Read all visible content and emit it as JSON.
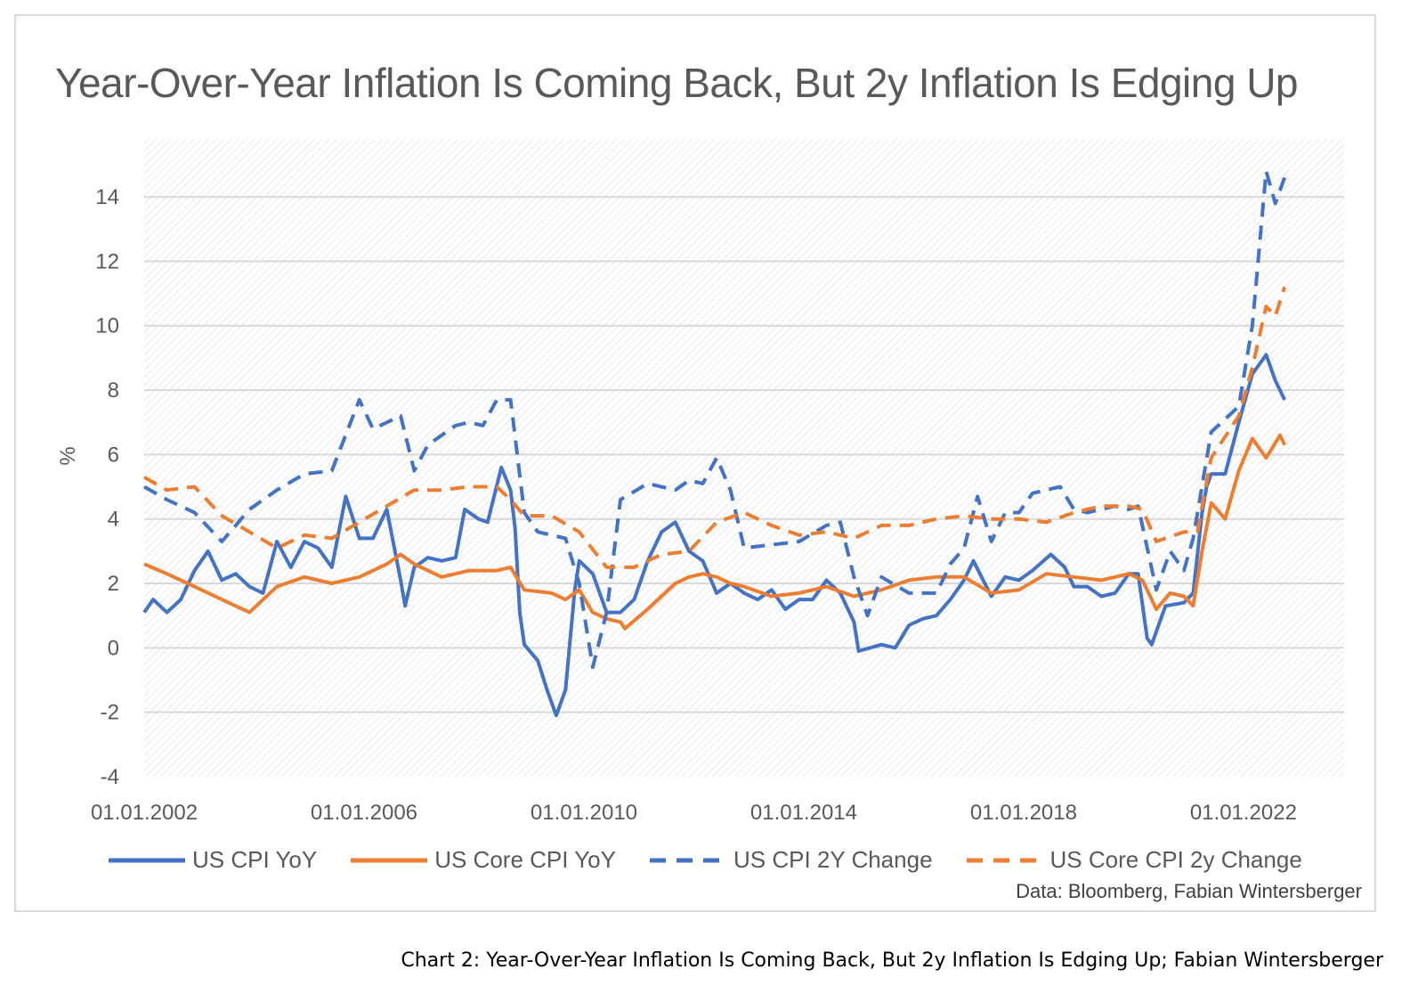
{
  "figure": {
    "title": "Year-Over-Year Inflation Is Coming Back, But 2y Inflation Is Edging Up",
    "source": "Data: Bloomberg, Fabian Wintersberger",
    "caption": "Chart 2: Year-Over-Year Inflation Is Coming Back, But 2y Inflation Is Edging Up; Fabian Wintersberger"
  },
  "chart_data": {
    "type": "line",
    "title": "Year-Over-Year Inflation Is Coming Back, But 2y Inflation Is Edging Up",
    "xlabel": "",
    "ylabel": "%",
    "ylim": [
      -4,
      15
    ],
    "yticks": [
      14,
      12,
      10,
      8,
      6,
      4,
      2,
      0,
      -2,
      -4
    ],
    "xlim": [
      "2002-01-01",
      "2024-01-01"
    ],
    "xticks": [
      "01.01.2002",
      "01.01.2006",
      "01.01.2010",
      "01.01.2014",
      "01.01.2018",
      "01.01.2022"
    ],
    "grid": "horizontal",
    "background": "diagonal-hatch",
    "legend_position": "bottom",
    "series": [
      {
        "name": "US CPI YoY",
        "color": "#4472C4",
        "style": "solid",
        "points": [
          [
            "2002-01",
            1.1
          ],
          [
            "2002-03",
            1.5
          ],
          [
            "2002-06",
            1.1
          ],
          [
            "2002-09",
            1.5
          ],
          [
            "2002-12",
            2.4
          ],
          [
            "2003-03",
            3.0
          ],
          [
            "2003-06",
            2.1
          ],
          [
            "2003-09",
            2.3
          ],
          [
            "2003-12",
            1.9
          ],
          [
            "2004-03",
            1.7
          ],
          [
            "2004-06",
            3.3
          ],
          [
            "2004-09",
            2.5
          ],
          [
            "2004-12",
            3.3
          ],
          [
            "2005-03",
            3.1
          ],
          [
            "2005-06",
            2.5
          ],
          [
            "2005-09",
            4.7
          ],
          [
            "2005-12",
            3.4
          ],
          [
            "2006-03",
            3.4
          ],
          [
            "2006-06",
            4.3
          ],
          [
            "2006-09",
            2.1
          ],
          [
            "2006-10",
            1.3
          ],
          [
            "2006-12",
            2.5
          ],
          [
            "2007-03",
            2.8
          ],
          [
            "2007-06",
            2.7
          ],
          [
            "2007-09",
            2.8
          ],
          [
            "2007-11",
            4.3
          ],
          [
            "2008-02",
            4.0
          ],
          [
            "2008-04",
            3.9
          ],
          [
            "2008-07",
            5.6
          ],
          [
            "2008-09",
            4.9
          ],
          [
            "2008-10",
            3.7
          ],
          [
            "2008-11",
            1.1
          ],
          [
            "2008-12",
            0.1
          ],
          [
            "2009-03",
            -0.4
          ],
          [
            "2009-05",
            -1.3
          ],
          [
            "2009-07",
            -2.1
          ],
          [
            "2009-09",
            -1.3
          ],
          [
            "2009-11",
            1.8
          ],
          [
            "2009-12",
            2.7
          ],
          [
            "2010-03",
            2.3
          ],
          [
            "2010-06",
            1.1
          ],
          [
            "2010-09",
            1.1
          ],
          [
            "2010-12",
            1.5
          ],
          [
            "2011-03",
            2.7
          ],
          [
            "2011-06",
            3.6
          ],
          [
            "2011-09",
            3.9
          ],
          [
            "2011-12",
            3.0
          ],
          [
            "2012-03",
            2.7
          ],
          [
            "2012-06",
            1.7
          ],
          [
            "2012-09",
            2.0
          ],
          [
            "2012-12",
            1.7
          ],
          [
            "2013-03",
            1.5
          ],
          [
            "2013-06",
            1.8
          ],
          [
            "2013-09",
            1.2
          ],
          [
            "2013-12",
            1.5
          ],
          [
            "2014-03",
            1.5
          ],
          [
            "2014-06",
            2.1
          ],
          [
            "2014-09",
            1.7
          ],
          [
            "2014-12",
            0.8
          ],
          [
            "2015-01",
            -0.1
          ],
          [
            "2015-06",
            0.1
          ],
          [
            "2015-09",
            0.0
          ],
          [
            "2015-12",
            0.7
          ],
          [
            "2016-03",
            0.9
          ],
          [
            "2016-06",
            1.0
          ],
          [
            "2016-09",
            1.5
          ],
          [
            "2016-12",
            2.1
          ],
          [
            "2017-02",
            2.7
          ],
          [
            "2017-06",
            1.6
          ],
          [
            "2017-09",
            2.2
          ],
          [
            "2017-12",
            2.1
          ],
          [
            "2018-03",
            2.4
          ],
          [
            "2018-07",
            2.9
          ],
          [
            "2018-10",
            2.5
          ],
          [
            "2018-12",
            1.9
          ],
          [
            "2019-03",
            1.9
          ],
          [
            "2019-06",
            1.6
          ],
          [
            "2019-09",
            1.7
          ],
          [
            "2019-12",
            2.3
          ],
          [
            "2020-02",
            2.3
          ],
          [
            "2020-04",
            0.3
          ],
          [
            "2020-05",
            0.1
          ],
          [
            "2020-08",
            1.3
          ],
          [
            "2020-12",
            1.4
          ],
          [
            "2021-02",
            1.7
          ],
          [
            "2021-04",
            4.2
          ],
          [
            "2021-05",
            5.0
          ],
          [
            "2021-06",
            5.4
          ],
          [
            "2021-09",
            5.4
          ],
          [
            "2021-12",
            7.0
          ],
          [
            "2022-03",
            8.5
          ],
          [
            "2022-06",
            9.1
          ],
          [
            "2022-08",
            8.3
          ],
          [
            "2022-10",
            7.7
          ]
        ]
      },
      {
        "name": "US Core CPI YoY",
        "color": "#ED7D31",
        "style": "solid",
        "points": [
          [
            "2002-01",
            2.6
          ],
          [
            "2002-06",
            2.3
          ],
          [
            "2002-12",
            1.9
          ],
          [
            "2003-06",
            1.5
          ],
          [
            "2003-12",
            1.1
          ],
          [
            "2004-06",
            1.9
          ],
          [
            "2004-12",
            2.2
          ],
          [
            "2005-06",
            2.0
          ],
          [
            "2005-12",
            2.2
          ],
          [
            "2006-06",
            2.6
          ],
          [
            "2006-09",
            2.9
          ],
          [
            "2006-12",
            2.6
          ],
          [
            "2007-06",
            2.2
          ],
          [
            "2007-12",
            2.4
          ],
          [
            "2008-06",
            2.4
          ],
          [
            "2008-09",
            2.5
          ],
          [
            "2008-12",
            1.8
          ],
          [
            "2009-06",
            1.7
          ],
          [
            "2009-09",
            1.5
          ],
          [
            "2009-12",
            1.8
          ],
          [
            "2010-03",
            1.1
          ],
          [
            "2010-06",
            0.9
          ],
          [
            "2010-09",
            0.8
          ],
          [
            "2010-10",
            0.6
          ],
          [
            "2011-03",
            1.2
          ],
          [
            "2011-09",
            2.0
          ],
          [
            "2011-12",
            2.2
          ],
          [
            "2012-03",
            2.3
          ],
          [
            "2012-06",
            2.2
          ],
          [
            "2012-09",
            2.0
          ],
          [
            "2012-12",
            1.9
          ],
          [
            "2013-06",
            1.6
          ],
          [
            "2013-12",
            1.7
          ],
          [
            "2014-06",
            1.9
          ],
          [
            "2014-12",
            1.6
          ],
          [
            "2015-06",
            1.8
          ],
          [
            "2015-12",
            2.1
          ],
          [
            "2016-06",
            2.2
          ],
          [
            "2016-12",
            2.2
          ],
          [
            "2017-06",
            1.7
          ],
          [
            "2017-12",
            1.8
          ],
          [
            "2018-06",
            2.3
          ],
          [
            "2018-12",
            2.2
          ],
          [
            "2019-06",
            2.1
          ],
          [
            "2019-12",
            2.3
          ],
          [
            "2020-03",
            2.1
          ],
          [
            "2020-06",
            1.2
          ],
          [
            "2020-09",
            1.7
          ],
          [
            "2020-12",
            1.6
          ],
          [
            "2021-02",
            1.3
          ],
          [
            "2021-04",
            3.0
          ],
          [
            "2021-06",
            4.5
          ],
          [
            "2021-09",
            4.0
          ],
          [
            "2021-12",
            5.5
          ],
          [
            "2022-03",
            6.5
          ],
          [
            "2022-06",
            5.9
          ],
          [
            "2022-09",
            6.6
          ],
          [
            "2022-10",
            6.3
          ]
        ]
      },
      {
        "name": "US CPI 2Y Change",
        "color": "#4472C4",
        "style": "dashed",
        "points": [
          [
            "2002-01",
            5.0
          ],
          [
            "2002-06",
            4.6
          ],
          [
            "2002-12",
            4.2
          ],
          [
            "2003-06",
            3.3
          ],
          [
            "2003-12",
            4.3
          ],
          [
            "2004-06",
            4.9
          ],
          [
            "2004-12",
            5.4
          ],
          [
            "2005-06",
            5.5
          ],
          [
            "2005-12",
            7.7
          ],
          [
            "2006-03",
            6.8
          ],
          [
            "2006-09",
            7.2
          ],
          [
            "2006-12",
            5.5
          ],
          [
            "2007-03",
            6.3
          ],
          [
            "2007-09",
            6.9
          ],
          [
            "2007-12",
            7.0
          ],
          [
            "2008-03",
            6.9
          ],
          [
            "2008-06",
            7.7
          ],
          [
            "2008-09",
            7.7
          ],
          [
            "2008-12",
            4.2
          ],
          [
            "2009-03",
            3.6
          ],
          [
            "2009-09",
            3.4
          ],
          [
            "2009-12",
            2.0
          ],
          [
            "2010-03",
            -0.6
          ],
          [
            "2010-06",
            1.1
          ],
          [
            "2010-09",
            4.6
          ],
          [
            "2011-03",
            5.1
          ],
          [
            "2011-09",
            4.9
          ],
          [
            "2011-12",
            5.2
          ],
          [
            "2012-03",
            5.1
          ],
          [
            "2012-06",
            5.9
          ],
          [
            "2012-09",
            4.9
          ],
          [
            "2012-12",
            3.1
          ],
          [
            "2013-06",
            3.2
          ],
          [
            "2013-12",
            3.3
          ],
          [
            "2014-06",
            3.8
          ],
          [
            "2014-09",
            3.9
          ],
          [
            "2014-12",
            2.2
          ],
          [
            "2015-03",
            1.0
          ],
          [
            "2015-06",
            2.2
          ],
          [
            "2015-12",
            1.7
          ],
          [
            "2016-06",
            1.7
          ],
          [
            "2016-09",
            2.6
          ],
          [
            "2016-12",
            3.1
          ],
          [
            "2017-03",
            4.7
          ],
          [
            "2017-06",
            3.3
          ],
          [
            "2017-09",
            4.2
          ],
          [
            "2017-12",
            4.2
          ],
          [
            "2018-03",
            4.8
          ],
          [
            "2018-09",
            5.0
          ],
          [
            "2018-12",
            4.3
          ],
          [
            "2019-03",
            4.2
          ],
          [
            "2019-09",
            4.4
          ],
          [
            "2019-12",
            4.3
          ],
          [
            "2020-02",
            4.4
          ],
          [
            "2020-06",
            1.8
          ],
          [
            "2020-09",
            3.0
          ],
          [
            "2020-12",
            2.4
          ],
          [
            "2021-02",
            3.4
          ],
          [
            "2021-06",
            6.7
          ],
          [
            "2021-12",
            7.5
          ],
          [
            "2022-03",
            10.0
          ],
          [
            "2022-06",
            14.8
          ],
          [
            "2022-08",
            13.8
          ],
          [
            "2022-10",
            14.6
          ]
        ]
      },
      {
        "name": "US Core CPI 2y Change",
        "color": "#ED7D31",
        "style": "dashed",
        "points": [
          [
            "2002-01",
            5.3
          ],
          [
            "2002-06",
            4.9
          ],
          [
            "2002-12",
            5.0
          ],
          [
            "2003-06",
            4.1
          ],
          [
            "2003-12",
            3.6
          ],
          [
            "2004-06",
            3.1
          ],
          [
            "2004-12",
            3.5
          ],
          [
            "2005-06",
            3.4
          ],
          [
            "2005-12",
            3.9
          ],
          [
            "2006-06",
            4.4
          ],
          [
            "2006-12",
            4.9
          ],
          [
            "2007-06",
            4.9
          ],
          [
            "2007-12",
            5.0
          ],
          [
            "2008-06",
            5.0
          ],
          [
            "2008-09",
            4.6
          ],
          [
            "2008-12",
            4.1
          ],
          [
            "2009-06",
            4.1
          ],
          [
            "2009-12",
            3.6
          ],
          [
            "2010-06",
            2.5
          ],
          [
            "2010-12",
            2.5
          ],
          [
            "2011-06",
            2.9
          ],
          [
            "2011-12",
            3.0
          ],
          [
            "2012-06",
            3.9
          ],
          [
            "2012-12",
            4.2
          ],
          [
            "2013-06",
            3.8
          ],
          [
            "2013-12",
            3.5
          ],
          [
            "2014-06",
            3.6
          ],
          [
            "2014-12",
            3.4
          ],
          [
            "2015-06",
            3.8
          ],
          [
            "2015-12",
            3.8
          ],
          [
            "2016-06",
            4.0
          ],
          [
            "2016-12",
            4.1
          ],
          [
            "2017-06",
            4.0
          ],
          [
            "2017-12",
            4.0
          ],
          [
            "2018-06",
            3.9
          ],
          [
            "2018-12",
            4.2
          ],
          [
            "2019-06",
            4.4
          ],
          [
            "2019-12",
            4.4
          ],
          [
            "2020-03",
            4.3
          ],
          [
            "2020-06",
            3.3
          ],
          [
            "2020-12",
            3.6
          ],
          [
            "2021-03",
            3.6
          ],
          [
            "2021-06",
            5.9
          ],
          [
            "2021-12",
            7.2
          ],
          [
            "2022-03",
            8.7
          ],
          [
            "2022-06",
            10.6
          ],
          [
            "2022-08",
            10.3
          ],
          [
            "2022-10",
            11.2
          ]
        ]
      }
    ]
  }
}
